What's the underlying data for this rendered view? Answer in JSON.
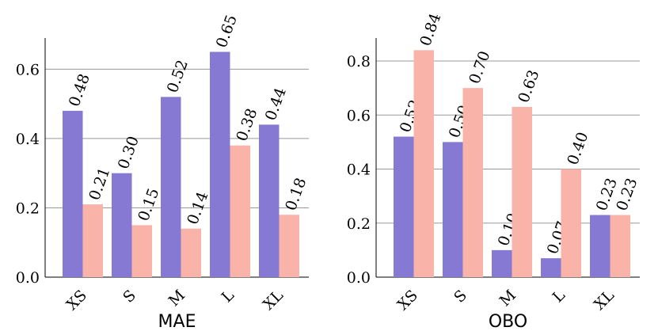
{
  "chart_data": [
    {
      "type": "bar",
      "xlabel": "MAE",
      "categories": [
        "XS",
        "S",
        "M",
        "L",
        "XL"
      ],
      "series": [
        {
          "values": [
            0.48,
            0.3,
            0.52,
            0.65,
            0.44
          ],
          "labels": [
            "0.48",
            "0.30",
            "0.52",
            "0.65",
            "0.44"
          ],
          "color": "#8579d4"
        },
        {
          "values": [
            0.21,
            0.15,
            0.14,
            0.38,
            0.18
          ],
          "labels": [
            "0.21",
            "0.15",
            "0.14",
            "0.38",
            "0.18"
          ],
          "color": "#f9b3a9"
        }
      ],
      "ylim": [
        0,
        0.69
      ],
      "yticks": [
        0.0,
        0.2,
        0.4,
        0.6
      ],
      "ytick_labels": [
        "0.0",
        "0.2",
        "0.4",
        "0.6"
      ],
      "grid": true
    },
    {
      "type": "bar",
      "xlabel": "OBO",
      "categories": [
        "XS",
        "S",
        "M",
        "L",
        "XL"
      ],
      "series": [
        {
          "values": [
            0.52,
            0.5,
            0.1,
            0.07,
            0.23
          ],
          "labels": [
            "0.52",
            "0.50",
            "0.10",
            "0.07",
            "0.23"
          ],
          "color": "#8579d4"
        },
        {
          "values": [
            0.84,
            0.7,
            0.63,
            0.4,
            0.23
          ],
          "labels": [
            "0.84",
            "0.70",
            "0.63",
            "0.40",
            "0.23"
          ],
          "color": "#f9b3a9"
        }
      ],
      "ylim": [
        0,
        0.885
      ],
      "yticks": [
        0.0,
        0.2,
        0.4,
        0.6,
        0.8
      ],
      "ytick_labels": [
        "0.0",
        "0.2",
        "0.4",
        "0.6",
        "0.8"
      ],
      "grid": true
    }
  ]
}
